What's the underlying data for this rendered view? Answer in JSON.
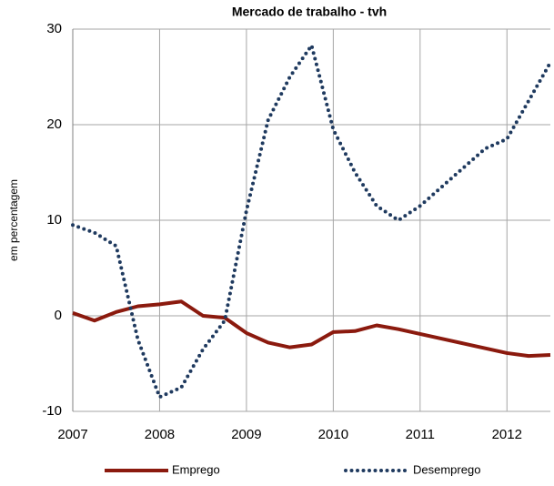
{
  "chart_data": {
    "type": "line",
    "title": "Mercado de trabalho - tvh",
    "ylabel": "em percentagem",
    "x": [
      2007,
      2007.25,
      2007.5,
      2007.75,
      2008,
      2008.25,
      2008.5,
      2008.75,
      2009,
      2009.25,
      2009.5,
      2009.75,
      2010,
      2010.25,
      2010.5,
      2010.75,
      2011,
      2011.25,
      2011.5,
      2011.75,
      2012,
      2012.25,
      2012.5
    ],
    "series": [
      {
        "name": "Emprego",
        "color": "#8b1a0e",
        "style": "solid",
        "values": [
          0.3,
          -0.5,
          0.4,
          1.0,
          1.2,
          1.5,
          0.0,
          -0.2,
          -1.8,
          -2.8,
          -3.3,
          -3.0,
          -1.7,
          -1.6,
          -1.0,
          -1.4,
          -1.9,
          -2.4,
          -2.9,
          -3.4,
          -3.9,
          -4.2,
          -4.1
        ]
      },
      {
        "name": "Desemprego",
        "color": "#1f3a5f",
        "style": "dotted",
        "values": [
          9.5,
          8.7,
          7.3,
          -2.5,
          -8.5,
          -7.5,
          -3.5,
          -0.5,
          11.0,
          20.5,
          25.0,
          28.3,
          19.5,
          15.0,
          11.5,
          10.0,
          11.5,
          13.5,
          15.5,
          17.5,
          18.5,
          22.5,
          26.5
        ]
      }
    ],
    "xlim": [
      2007,
      2012.5
    ],
    "xticks": [
      2007,
      2008,
      2009,
      2010,
      2011,
      2012
    ],
    "ylim": [
      -10,
      30
    ],
    "yticks": [
      -10,
      0,
      10,
      20,
      30
    ],
    "grid": true,
    "legend": "bottom"
  }
}
